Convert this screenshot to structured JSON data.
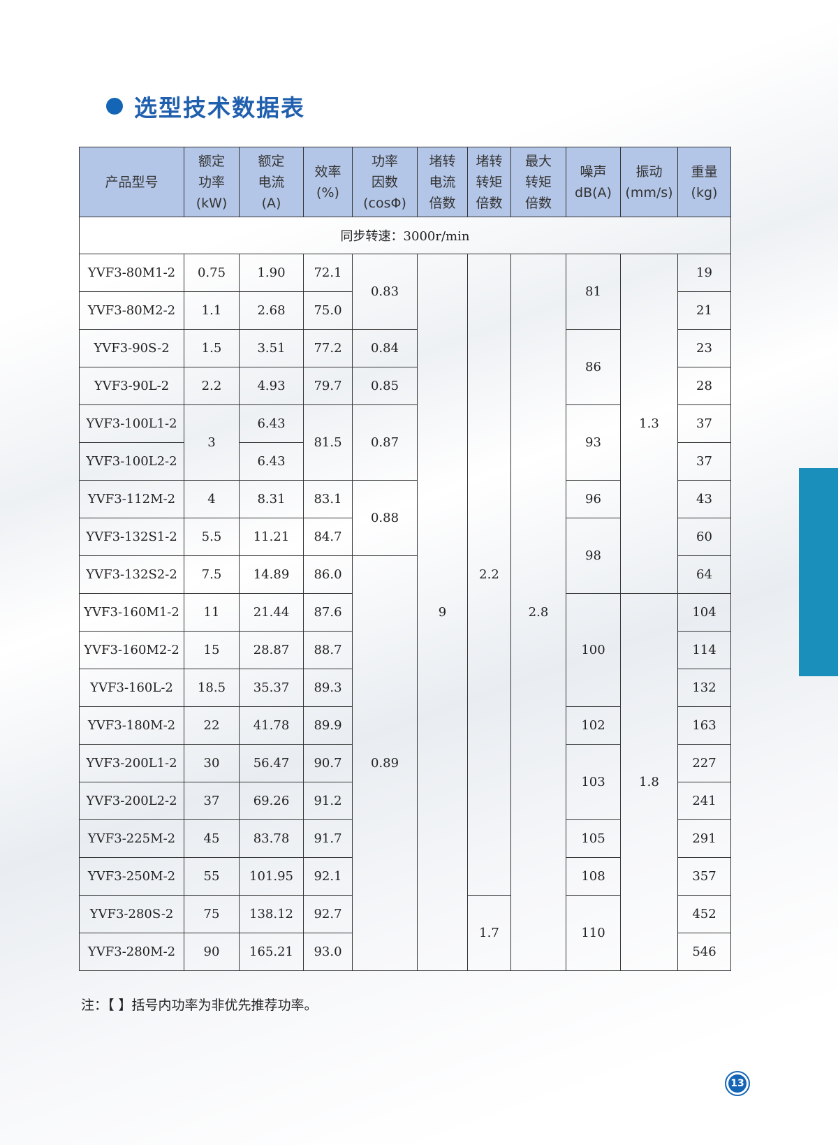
{
  "section_title": "选型技术数据表",
  "table": {
    "headers": [
      "产品型号",
      "额定\n功率\n(kW)",
      "额定\n电流\n(A)",
      "效率\n(%)",
      "功率\n因数\n(cosΦ)",
      "堵转\n电流\n倍数",
      "堵转\n转矩\n倍数",
      "最大\n转矩\n倍数",
      "噪声\ndB(A)",
      "振动\n(mm/s)",
      "重量\n(kg)"
    ],
    "sync_speed": "同步转速：3000r/min",
    "columns": {
      "model": [
        {
          "value": "YVF3-80M1-2",
          "span": 1
        },
        {
          "value": "YVF3-80M2-2",
          "span": 1
        },
        {
          "value": "YVF3-90S-2",
          "span": 1
        },
        {
          "value": "YVF3-90L-2",
          "span": 1
        },
        {
          "value": "YVF3-100L1-2",
          "span": 1
        },
        {
          "value": "YVF3-100L2-2",
          "span": 1
        },
        {
          "value": "YVF3-112M-2",
          "span": 1
        },
        {
          "value": "YVF3-132S1-2",
          "span": 1
        },
        {
          "value": "YVF3-132S2-2",
          "span": 1
        },
        {
          "value": "YVF3-160M1-2",
          "span": 1
        },
        {
          "value": "YVF3-160M2-2",
          "span": 1
        },
        {
          "value": "YVF3-160L-2",
          "span": 1
        },
        {
          "value": "YVF3-180M-2",
          "span": 1
        },
        {
          "value": "YVF3-200L1-2",
          "span": 1
        },
        {
          "value": "YVF3-200L2-2",
          "span": 1
        },
        {
          "value": "YVF3-225M-2",
          "span": 1
        },
        {
          "value": "YVF3-250M-2",
          "span": 1
        },
        {
          "value": "YVF3-280S-2",
          "span": 1
        },
        {
          "value": "YVF3-280M-2",
          "span": 1
        }
      ],
      "rated_power": [
        {
          "value": "0.75",
          "span": 1
        },
        {
          "value": "1.1",
          "span": 1
        },
        {
          "value": "1.5",
          "span": 1
        },
        {
          "value": "2.2",
          "span": 1
        },
        {
          "value": "3",
          "span": 2
        },
        {
          "value": "4",
          "span": 1
        },
        {
          "value": "5.5",
          "span": 1
        },
        {
          "value": "7.5",
          "span": 1
        },
        {
          "value": "11",
          "span": 1
        },
        {
          "value": "15",
          "span": 1
        },
        {
          "value": "18.5",
          "span": 1
        },
        {
          "value": "22",
          "span": 1
        },
        {
          "value": "30",
          "span": 1
        },
        {
          "value": "37",
          "span": 1
        },
        {
          "value": "45",
          "span": 1
        },
        {
          "value": "55",
          "span": 1
        },
        {
          "value": "75",
          "span": 1
        },
        {
          "value": "90",
          "span": 1
        }
      ],
      "rated_current": [
        {
          "value": "1.90",
          "span": 1
        },
        {
          "value": "2.68",
          "span": 1
        },
        {
          "value": "3.51",
          "span": 1
        },
        {
          "value": "4.93",
          "span": 1
        },
        {
          "value": "6.43",
          "span": 1
        },
        {
          "value": "6.43",
          "span": 1
        },
        {
          "value": "8.31",
          "span": 1
        },
        {
          "value": "11.21",
          "span": 1
        },
        {
          "value": "14.89",
          "span": 1
        },
        {
          "value": "21.44",
          "span": 1
        },
        {
          "value": "28.87",
          "span": 1
        },
        {
          "value": "35.37",
          "span": 1
        },
        {
          "value": "41.78",
          "span": 1
        },
        {
          "value": "56.47",
          "span": 1
        },
        {
          "value": "69.26",
          "span": 1
        },
        {
          "value": "83.78",
          "span": 1
        },
        {
          "value": "101.95",
          "span": 1
        },
        {
          "value": "138.12",
          "span": 1
        },
        {
          "value": "165.21",
          "span": 1
        }
      ],
      "efficiency": [
        {
          "value": "72.1",
          "span": 1
        },
        {
          "value": "75.0",
          "span": 1
        },
        {
          "value": "77.2",
          "span": 1
        },
        {
          "value": "79.7",
          "span": 1
        },
        {
          "value": "81.5",
          "span": 2
        },
        {
          "value": "83.1",
          "span": 1
        },
        {
          "value": "84.7",
          "span": 1
        },
        {
          "value": "86.0",
          "span": 1
        },
        {
          "value": "87.6",
          "span": 1
        },
        {
          "value": "88.7",
          "span": 1
        },
        {
          "value": "89.3",
          "span": 1
        },
        {
          "value": "89.9",
          "span": 1
        },
        {
          "value": "90.7",
          "span": 1
        },
        {
          "value": "91.2",
          "span": 1
        },
        {
          "value": "91.7",
          "span": 1
        },
        {
          "value": "92.1",
          "span": 1
        },
        {
          "value": "92.7",
          "span": 1
        },
        {
          "value": "93.0",
          "span": 1
        }
      ],
      "power_factor": [
        {
          "value": "0.83",
          "span": 2
        },
        {
          "value": "0.84",
          "span": 1
        },
        {
          "value": "0.85",
          "span": 1
        },
        {
          "value": "0.87",
          "span": 2
        },
        {
          "value": "0.88",
          "span": 2
        },
        {
          "value": "0.89",
          "span": 11
        }
      ],
      "locked_current": [
        {
          "value": "9",
          "span": 19
        }
      ],
      "locked_torque": [
        {
          "value": "2.2",
          "span": 17
        },
        {
          "value": "1.7",
          "span": 2
        }
      ],
      "max_torque": [
        {
          "value": "2.8",
          "span": 19
        }
      ],
      "noise": [
        {
          "value": "81",
          "span": 2
        },
        {
          "value": "86",
          "span": 2
        },
        {
          "value": "93",
          "span": 2
        },
        {
          "value": "96",
          "span": 1
        },
        {
          "value": "98",
          "span": 2
        },
        {
          "value": "100",
          "span": 3
        },
        {
          "value": "102",
          "span": 1
        },
        {
          "value": "103",
          "span": 2
        },
        {
          "value": "105",
          "span": 1
        },
        {
          "value": "108",
          "span": 1
        },
        {
          "value": "110",
          "span": 2
        }
      ],
      "vibration": [
        {
          "value": "1.3",
          "span": 9
        },
        {
          "value": "1.8",
          "span": 10
        }
      ],
      "weight": [
        {
          "value": "19",
          "span": 1
        },
        {
          "value": "21",
          "span": 1
        },
        {
          "value": "23",
          "span": 1
        },
        {
          "value": "28",
          "span": 1
        },
        {
          "value": "37",
          "span": 1
        },
        {
          "value": "37",
          "span": 1
        },
        {
          "value": "43",
          "span": 1
        },
        {
          "value": "60",
          "span": 1
        },
        {
          "value": "64",
          "span": 1
        },
        {
          "value": "104",
          "span": 1
        },
        {
          "value": "114",
          "span": 1
        },
        {
          "value": "132",
          "span": 1
        },
        {
          "value": "163",
          "span": 1
        },
        {
          "value": "227",
          "span": 1
        },
        {
          "value": "241",
          "span": 1
        },
        {
          "value": "291",
          "span": 1
        },
        {
          "value": "357",
          "span": 1
        },
        {
          "value": "452",
          "span": 1
        },
        {
          "value": "546",
          "span": 1
        }
      ]
    }
  },
  "note": "注：【 】括号内功率为非优先推荐功率。",
  "page_number": "13",
  "colors": {
    "accent": "#1f5fae",
    "header_bg": "#b4c6e7",
    "side_tab": "#1a8fbb"
  }
}
